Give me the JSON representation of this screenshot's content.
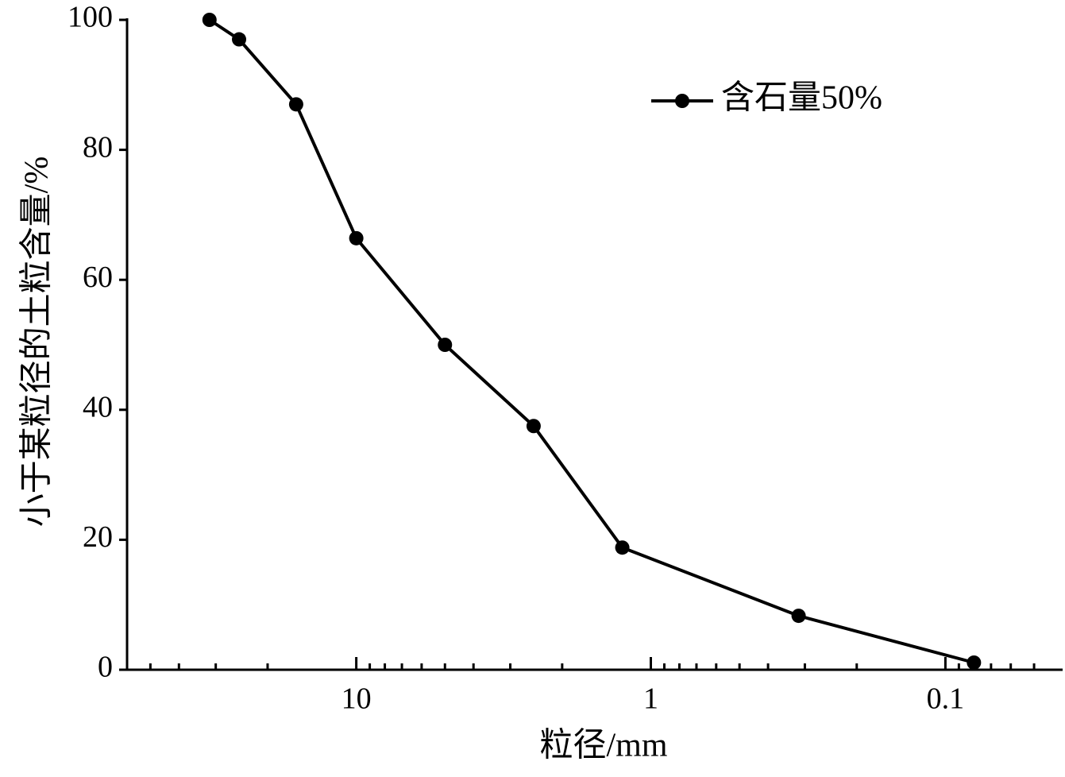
{
  "chart_data": {
    "type": "line",
    "x_label": "粒径/mm",
    "y_label": "小于某粒径的土粒含量/%",
    "x": [
      31.5,
      25,
      16,
      10,
      5,
      2.5,
      1.25,
      0.315,
      0.08
    ],
    "series": [
      {
        "name": "含石量50%",
        "color": "#000000",
        "values": [
          100,
          97,
          87,
          66.4,
          50,
          37.5,
          18.8,
          8.3,
          1.1
        ]
      }
    ],
    "xscale": "log",
    "xlim": [
      60,
      0.04
    ],
    "xticks": [
      10,
      1,
      0.1
    ],
    "xminorticks": [
      50,
      40,
      30,
      20,
      9,
      8,
      7,
      6,
      5,
      4,
      3,
      2,
      0.9,
      0.8,
      0.7,
      0.6,
      0.5,
      0.4,
      0.3,
      0.2,
      0.09,
      0.08,
      0.07,
      0.06,
      0.05
    ],
    "ylim": [
      0,
      100
    ],
    "yticks": [
      0,
      20,
      40,
      60,
      80,
      100
    ],
    "legend": "upper right"
  }
}
